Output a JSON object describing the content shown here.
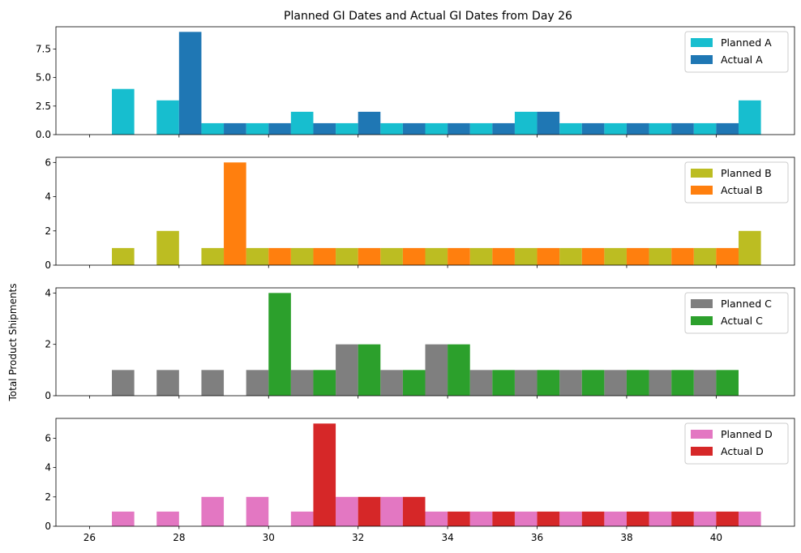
{
  "chart_data": {
    "type": "bar",
    "title": "Planned GI Dates and Actual GI Dates from Day 26",
    "ylabel": "Total Product Shipments",
    "xlabel": "",
    "x_ticks": [
      26,
      28,
      30,
      32,
      34,
      36,
      38,
      40
    ],
    "xlim": [
      25.25,
      41.75
    ],
    "bin_width": 0.5,
    "legend_location": "upper right",
    "grid": false,
    "subplots": [
      {
        "ylim": [
          0,
          9.45
        ],
        "y_ticks": [
          0.0,
          2.5,
          5.0,
          7.5
        ],
        "y_tick_labels": [
          "0.0",
          "2.5",
          "5.0",
          "7.5"
        ],
        "series": [
          {
            "name": "Planned A",
            "color": "#17becf",
            "x": [
              26.5,
              27.5,
              28.5,
              29.5,
              30.5,
              31.5,
              32.5,
              33.5,
              34.5,
              35.5,
              36.5,
              37.5,
              38.5,
              39.5,
              40.5
            ],
            "values": [
              4,
              3,
              1,
              1,
              2,
              1,
              1,
              1,
              1,
              2,
              1,
              1,
              1,
              1,
              3
            ]
          },
          {
            "name": "Actual A",
            "color": "#1f77b4",
            "x": [
              28.0,
              29.0,
              30.0,
              31.0,
              32.0,
              33.0,
              34.0,
              35.0,
              36.0,
              37.0,
              38.0,
              39.0,
              40.0
            ],
            "values": [
              9,
              1,
              1,
              1,
              2,
              1,
              1,
              1,
              2,
              1,
              1,
              1,
              1
            ]
          }
        ]
      },
      {
        "ylim": [
          0,
          6.3
        ],
        "y_ticks": [
          0,
          2,
          4,
          6
        ],
        "y_tick_labels": [
          "0",
          "2",
          "4",
          "6"
        ],
        "series": [
          {
            "name": "Planned B",
            "color": "#bcbd22",
            "x": [
              26.5,
              27.5,
              28.5,
              29.5,
              30.5,
              31.5,
              32.5,
              33.5,
              34.5,
              35.5,
              36.5,
              37.5,
              38.5,
              39.5,
              40.5
            ],
            "values": [
              1,
              2,
              1,
              1,
              1,
              1,
              1,
              1,
              1,
              1,
              1,
              1,
              1,
              1,
              2
            ]
          },
          {
            "name": "Actual B",
            "color": "#ff7f0e",
            "x": [
              29.0,
              30.0,
              31.0,
              32.0,
              33.0,
              34.0,
              35.0,
              36.0,
              37.0,
              38.0,
              39.0,
              40.0
            ],
            "values": [
              6,
              1,
              1,
              1,
              1,
              1,
              1,
              1,
              1,
              1,
              1,
              1
            ]
          }
        ]
      },
      {
        "ylim": [
          0,
          4.2
        ],
        "y_ticks": [
          0,
          2,
          4
        ],
        "y_tick_labels": [
          "0",
          "2",
          "4"
        ],
        "series": [
          {
            "name": "Planned C",
            "color": "#7f7f7f",
            "x": [
              26.5,
              27.5,
              28.5,
              29.5,
              30.5,
              31.5,
              32.5,
              33.5,
              34.5,
              35.5,
              36.5,
              37.5,
              38.5,
              39.5
            ],
            "values": [
              1,
              1,
              1,
              1,
              1,
              2,
              1,
              2,
              1,
              1,
              1,
              1,
              1,
              1
            ]
          },
          {
            "name": "Actual C",
            "color": "#2ca02c",
            "x": [
              30.0,
              31.0,
              32.0,
              33.0,
              34.0,
              35.0,
              36.0,
              37.0,
              38.0,
              39.0,
              40.0
            ],
            "values": [
              4,
              1,
              2,
              1,
              2,
              1,
              1,
              1,
              1,
              1,
              1
            ]
          }
        ]
      },
      {
        "ylim": [
          0,
          7.35
        ],
        "y_ticks": [
          0,
          2,
          4,
          6
        ],
        "y_tick_labels": [
          "0",
          "2",
          "4",
          "6"
        ],
        "series": [
          {
            "name": "Planned D",
            "color": "#e377c2",
            "x": [
              26.5,
              27.5,
              28.5,
              29.5,
              30.5,
              31.5,
              32.5,
              33.5,
              34.5,
              35.5,
              36.5,
              37.5,
              38.5,
              39.5,
              40.5
            ],
            "values": [
              1,
              1,
              2,
              2,
              1,
              2,
              2,
              1,
              1,
              1,
              1,
              1,
              1,
              1,
              1
            ]
          },
          {
            "name": "Actual D",
            "color": "#d62728",
            "x": [
              31.0,
              32.0,
              33.0,
              34.0,
              35.0,
              36.0,
              37.0,
              38.0,
              39.0,
              40.0
            ],
            "values": [
              7,
              2,
              2,
              1,
              1,
              1,
              1,
              1,
              1,
              1
            ]
          }
        ]
      }
    ]
  }
}
